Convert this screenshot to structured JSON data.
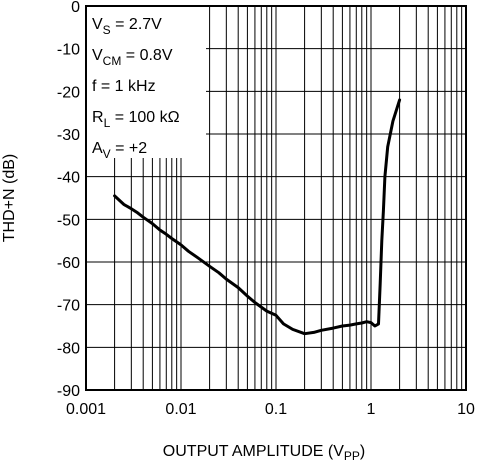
{
  "chart_data": {
    "type": "line",
    "xlabel": {
      "text": "OUTPUT AMPLITUDE (V",
      "sub": "PP",
      "suffix": ")"
    },
    "ylabel": "THD+N (dB)",
    "xscale": "log",
    "xlim": [
      0.001,
      10
    ],
    "ylim": [
      -90,
      0
    ],
    "xticks": [
      "0.001",
      "0.01",
      "0.1",
      "1",
      "10"
    ],
    "yticks": [
      "0",
      "-10",
      "-20",
      "-30",
      "-40",
      "-50",
      "-60",
      "-70",
      "-80",
      "-90"
    ],
    "grid": true,
    "conditions": [
      {
        "main": "V",
        "sub": "S",
        "rest": " = 2.7V"
      },
      {
        "main": "V",
        "sub": "CM",
        "rest": " = 0.8V"
      },
      {
        "main": "f = 1 kHz",
        "sub": "",
        "rest": ""
      },
      {
        "main": "R",
        "sub": "L",
        "rest": " = 100 kΩ"
      },
      {
        "main": "A",
        "sub": "V",
        "rest": " = +2"
      }
    ],
    "series": [
      {
        "color": "#000000",
        "x": [
          0.002,
          0.0025,
          0.003,
          0.0035,
          0.004,
          0.005,
          0.006,
          0.007,
          0.008,
          0.01,
          0.012,
          0.015,
          0.02,
          0.025,
          0.03,
          0.04,
          0.05,
          0.06,
          0.08,
          0.1,
          0.12,
          0.15,
          0.2,
          0.25,
          0.3,
          0.4,
          0.5,
          0.6,
          0.7,
          0.8,
          0.9,
          1.0,
          1.1,
          1.2,
          1.25,
          1.3,
          1.35,
          1.4,
          1.5,
          1.7,
          2.0
        ],
        "y": [
          -44.5,
          -46.5,
          -47.5,
          -48.5,
          -49.5,
          -51,
          -52.5,
          -53.5,
          -54.5,
          -56,
          -57.5,
          -59,
          -61,
          -62.5,
          -64,
          -66,
          -68,
          -69.5,
          -71.5,
          -72.5,
          -74.5,
          -75.8,
          -76.8,
          -76.5,
          -76,
          -75.5,
          -75,
          -74.8,
          -74.5,
          -74.3,
          -74,
          -74.2,
          -75,
          -74.5,
          -65,
          -55,
          -48,
          -40,
          -33,
          -27,
          -22
        ]
      }
    ]
  }
}
